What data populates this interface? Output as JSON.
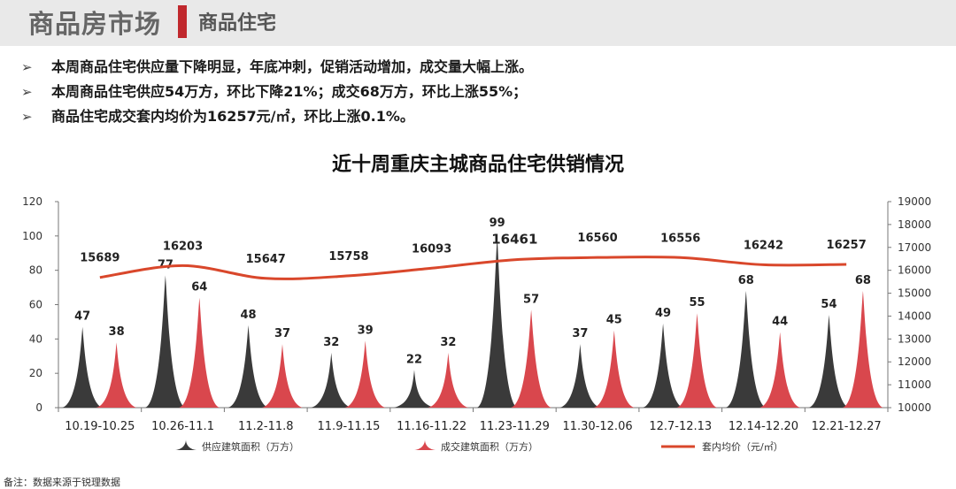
{
  "header": {
    "title": "商品房市场",
    "subtitle": "商品住宅"
  },
  "bullets": [
    "本周商品住宅供应量下降明显，年底冲刺，促销活动增加，成交量大幅上涨。",
    "本周商品住宅供应54万方，环比下降21%；成交68万方，环比上涨55%；",
    "商品住宅成交套内均价为16257元/㎡，环比上涨0.1%。"
  ],
  "bullet_marker": "➢",
  "footnote": "备注：数据来源于锐理数据",
  "colors": {
    "supply": "#3a3a3a",
    "deal": "#d9474d",
    "price": "#d9472b",
    "accent": "#c0282d"
  },
  "chart_data": {
    "type": "bar",
    "title": "近十周重庆主城商品住宅供销情况",
    "categories": [
      "10.19-10.25",
      "10.26-11.1",
      "11.2-11.8",
      "11.9-11.15",
      "11.16-11.22",
      "11.23-11.29",
      "11.30-12.06",
      "12.7-12.13",
      "12.14-12.20",
      "12.21-12.27"
    ],
    "series": [
      {
        "name": "供应建筑面积（万方）",
        "kind": "bar",
        "axis": "left",
        "values": [
          47,
          77,
          48,
          32,
          22,
          99,
          37,
          49,
          68,
          54
        ]
      },
      {
        "name": "成交建筑面积（万方）",
        "kind": "bar",
        "axis": "left",
        "values": [
          38,
          64,
          37,
          39,
          32,
          57,
          45,
          55,
          44,
          68
        ]
      },
      {
        "name": "套内均价（元/㎡）",
        "kind": "line",
        "axis": "right",
        "values": [
          15689,
          16203,
          15647,
          15758,
          16093,
          16461,
          16560,
          16556,
          16242,
          16257
        ]
      }
    ],
    "ylim_left": [
      0,
      120
    ],
    "yticks_left": [
      0,
      20,
      40,
      60,
      80,
      100,
      120
    ],
    "ylim_right": [
      10000,
      19000
    ],
    "yticks_right": [
      10000,
      11000,
      12000,
      13000,
      14000,
      15000,
      16000,
      17000,
      18000,
      19000
    ],
    "legend_position": "bottom",
    "grid": false
  }
}
